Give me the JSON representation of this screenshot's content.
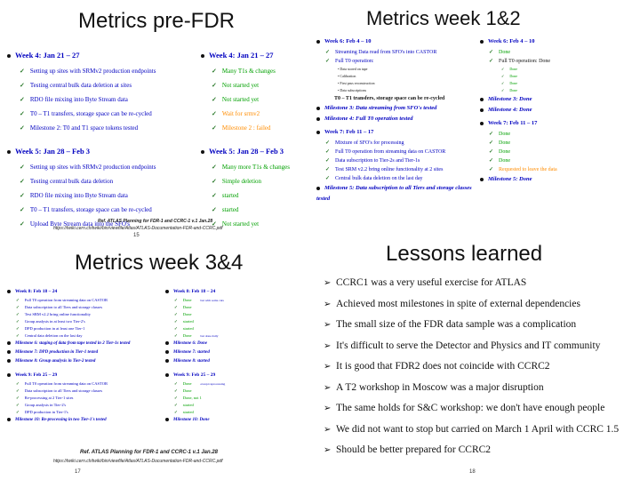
{
  "q1": {
    "title": "Metrics pre-FDR",
    "left": [
      {
        "week": "Week 4: Jan 21 – 27",
        "items": [
          "Setting up sites with SRMv2 production endpoints",
          "Testing central bulk data deletion at sites",
          "RDO file mixing into Byte Stream data",
          "T0 – T1 transfers, storage space can be re-cycled",
          "Milestone 2: T0 and T1 space tokens tested"
        ]
      },
      {
        "week": "Week 5: Jan 28 – Feb 3",
        "items": [
          "Setting up sites with SRMv2 production endpoints",
          "Testing central bulk data deletion",
          "RDO file mixing into Byte Stream data",
          "T0 – T1 transfers, storage space can be re-cycled",
          "Upload Byte Stream data into the SFO's"
        ]
      }
    ],
    "right": [
      {
        "week": "Week 4: Jan 21 – 27",
        "items": [
          "Many T1s & changes",
          "Not started yet",
          "Not started yet",
          "Wait for srmv2",
          "Milestone 2 : failed"
        ]
      },
      {
        "week": "Week 5: Jan 28 – Feb 3",
        "items": [
          "Many more T1s & changes",
          "Simple deletion",
          "started",
          "started",
          "Not started yet"
        ]
      }
    ],
    "ref": "Ref. ATLAS Planning for FDR-1 and CCRC-1 v.1 Jan.28",
    "ref2": "https://twiki.cern.ch/twiki/bin/viewfile/Atlas/ATLAS-Documentation-FDR-and-CCRC.pdf",
    "page": "15"
  },
  "q2": {
    "title": "Metrics week 1&2",
    "left": [
      {
        "week": "Week 6: Feb 4 – 10",
        "items": [
          "Streaming Data read from SFO's into CASTOR",
          "Full T0 operation:"
        ],
        "subitems": [
          "Data stored on tape",
          "Calibration",
          "First pass reconstruction",
          "Data subscriptions"
        ],
        "extra": "T0 – T1 transfers, storage space can be re-cycled"
      },
      {
        "milestone": "Milestone 3: Data streaming from SFO's tested"
      },
      {
        "milestone": "Milestone 4: Full T0 operation tested"
      },
      {
        "week": "Week 7: Feb 11 – 17",
        "items": [
          "Mixture of SFO's for processing",
          "Full T0 operation from streaming data on CASTOR",
          "Data subscription to Tier-2s and Tier-1s",
          "Test SRM v2.2 bring online functionality at 2 sites",
          "Central bulk data deletion on the last day"
        ]
      },
      {
        "milestone": "Milestone 5: Data subscription to all Tiers and storage classes tested"
      }
    ],
    "right": [
      {
        "week": "Week 6: Feb 4 – 10",
        "items": [
          "Done",
          "Full T0 operation: Done"
        ],
        "subitems": [
          "Done",
          "Done",
          "Done",
          "Done"
        ]
      },
      {
        "milestone": "Milestone 3: Done"
      },
      {
        "milestone": "Milestone 4: Done"
      },
      {
        "week": "Week 7: Feb 11 – 17",
        "items": [
          "Done",
          "Done",
          "Done",
          "Done",
          "Requested to leave the data"
        ]
      },
      {
        "milestone": "Milestone 5: Done"
      }
    ]
  },
  "q3": {
    "title": "Metrics week 3&4",
    "left": [
      {
        "week": "Week 8: Feb 18 – 24",
        "items": [
          "Full T0 operation from streaming data on CASTOR",
          "Data subscription to all Tiers and storage classes",
          "Test SRM v2.2 bring online functionality",
          "Group analysis in at least two Tier-2's",
          "DPD production in at least one Tier-1",
          "Central data deletion on the last day"
        ]
      },
      {
        "milestone": "Milestone 6: staging of data from tape tested in 2 Tier-1s tested"
      },
      {
        "milestone": "Milestone 7: DPD production in Tier-1 tested"
      },
      {
        "milestone": "Milestone 8: Group analysis in Tier-2 tested"
      },
      {
        "week": "Week 9: Feb 25 – 29",
        "items": [
          "Full T0 operation from streaming data on CASTOR",
          "Data subscription to all Tiers and storage classes",
          "Re-processing at 2 Tier-1 sites",
          "Group analysis in Tier-2's",
          "DPD production in Tier-1's"
        ]
      },
      {
        "milestone": "Milestone 10: Re-processing in two Tier-1's tested"
      }
    ],
    "right": [
      {
        "week": "Week 8: Feb 18 – 24",
        "items": [
          "Done",
          "Done",
          "Done",
          "started",
          "started",
          "Done"
        ],
        "notes": [
          "but with some cuts",
          "",
          "",
          "",
          "",
          "but done daily"
        ]
      },
      {
        "milestone": "Milestone 6: Done"
      },
      {
        "milestone": "Milestone 7: started"
      },
      {
        "milestone": "Milestone 8: started"
      },
      {
        "week": "Week 9: Feb 25 – 29",
        "items": [
          "Done",
          "Done",
          "Done, not 1",
          "started",
          "started"
        ],
        "notes": [
          "except reprocessing",
          "",
          "",
          "",
          ""
        ]
      },
      {
        "milestone": "Milestone 10: Done"
      }
    ],
    "ref": "Ref. ATLAS Planning for FDR-1 and CCRC-1 v.1 Jan.28",
    "ref2": "https://twiki.cern.ch/twiki/bin/viewfile/Atlas/ATLAS-Documentation-FDR-and-CCRC.pdf",
    "page": "17"
  },
  "q4": {
    "title": "Lessons learned",
    "items": [
      "CCRC1 was a very useful exercise for ATLAS",
      "Achieved most milestones in spite of external dependencies",
      "The small size of the FDR data sample was a complication",
      "It's difficult to serve the Detector and Physics and IT community",
      "It is good that FDR2 does not coincide with CCRC2",
      "A T2 workshop in Moscow was a major disruption",
      "The same holds for S&C workshop: we don't have enough people",
      "We did not want to stop but carried on March 1 April with CCRC 1.5",
      "Should be better prepared for CCRC2"
    ],
    "page": "18"
  }
}
